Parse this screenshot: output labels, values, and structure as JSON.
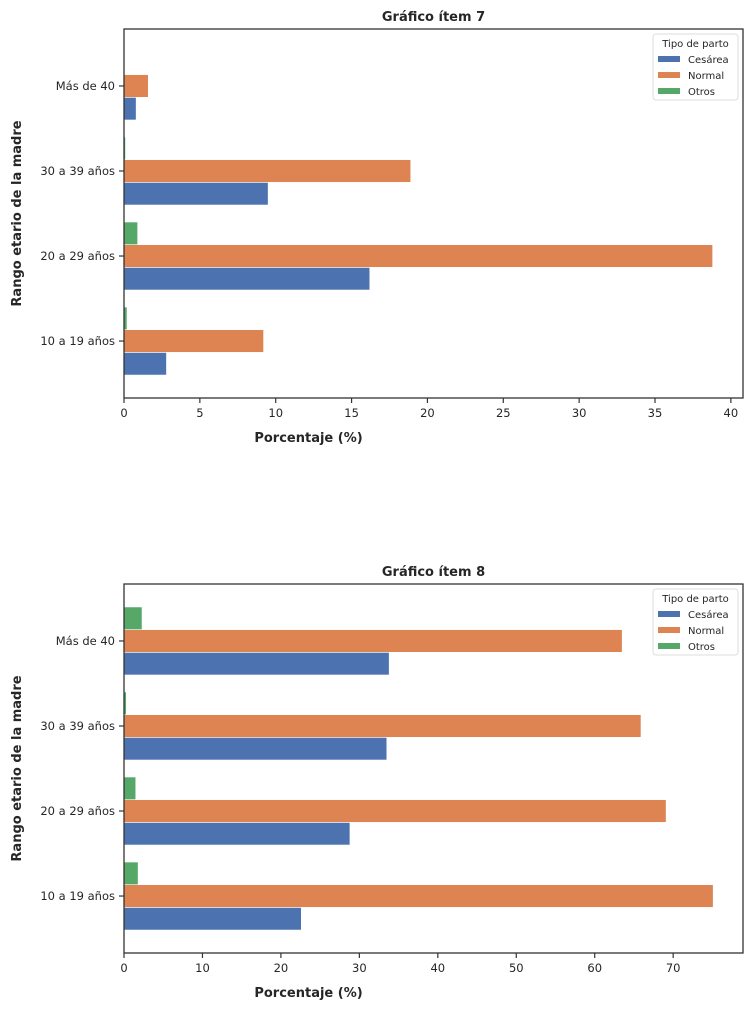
{
  "colors": {
    "Cesárea": "#4c72b0",
    "Normal": "#dd8452",
    "Otros": "#55a868"
  },
  "chart_data": [
    {
      "type": "bar",
      "orientation": "horizontal",
      "title": "Gráfico ítem 7",
      "xlabel": "Porcentaje (%)",
      "ylabel": "Rango etario de la madre",
      "categories": [
        "10 a 19 años",
        "20 a 29 años",
        "30 a 39 años",
        "Más de 40"
      ],
      "xlim": [
        0,
        40.8
      ],
      "xticks": [
        0,
        5,
        10,
        15,
        20,
        25,
        30,
        35,
        40
      ],
      "legend": {
        "title": "Tipo de parto",
        "placement": "top-right"
      },
      "grid": false,
      "series": [
        {
          "name": "Cesárea",
          "values": [
            2.8,
            16.2,
            9.5,
            0.8
          ]
        },
        {
          "name": "Normal",
          "values": [
            9.2,
            38.8,
            18.9,
            1.6
          ]
        },
        {
          "name": "Otros",
          "values": [
            0.2,
            0.9,
            0.1,
            0.0
          ]
        }
      ]
    },
    {
      "type": "bar",
      "orientation": "horizontal",
      "title": "Gráfico ítem 8",
      "xlabel": "Porcentaje (%)",
      "ylabel": "Rango etario de la madre",
      "categories": [
        "10 a 19 años",
        "20 a 29 años",
        "30 a 39 años",
        "Más de 40"
      ],
      "xlim": [
        0,
        78.9
      ],
      "xticks": [
        0,
        10,
        20,
        30,
        40,
        50,
        60,
        70
      ],
      "legend": {
        "title": "Tipo de parto",
        "placement": "top-right"
      },
      "grid": false,
      "series": [
        {
          "name": "Cesárea",
          "values": [
            22.6,
            28.8,
            33.5,
            33.8
          ]
        },
        {
          "name": "Normal",
          "values": [
            75.1,
            69.1,
            65.9,
            63.5
          ]
        },
        {
          "name": "Otros",
          "values": [
            1.8,
            1.5,
            0.3,
            2.3
          ]
        }
      ]
    }
  ]
}
